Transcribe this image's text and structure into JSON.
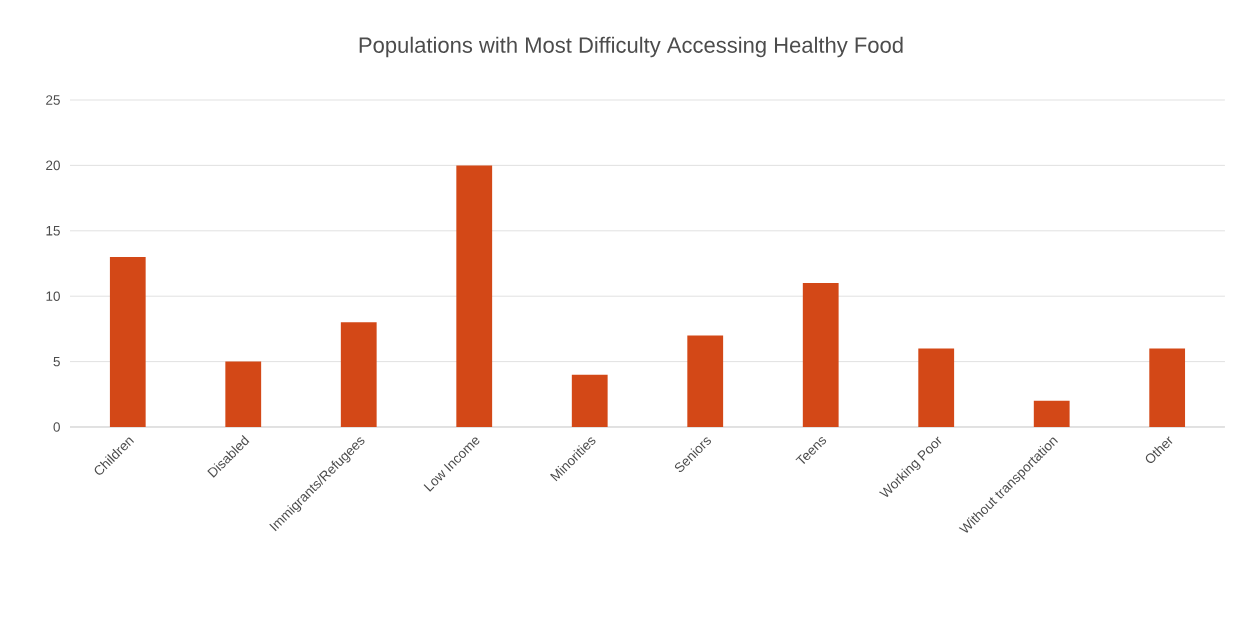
{
  "chart_data": {
    "type": "bar",
    "title": "Populations with Most Difficulty Accessing Healthy Food",
    "categories": [
      "Children",
      "Disabled",
      "Immigrants/Refugees",
      "Low Income",
      "Minorities",
      "Seniors",
      "Teens",
      "Working Poor",
      "Without transportation",
      "Other"
    ],
    "values": [
      13,
      5,
      8,
      20,
      4,
      7,
      11,
      6,
      2,
      6
    ],
    "color": "#d34817",
    "ylim": [
      0,
      25
    ],
    "yticks": [
      0,
      5,
      10,
      15,
      20,
      25
    ],
    "grid": "y"
  }
}
